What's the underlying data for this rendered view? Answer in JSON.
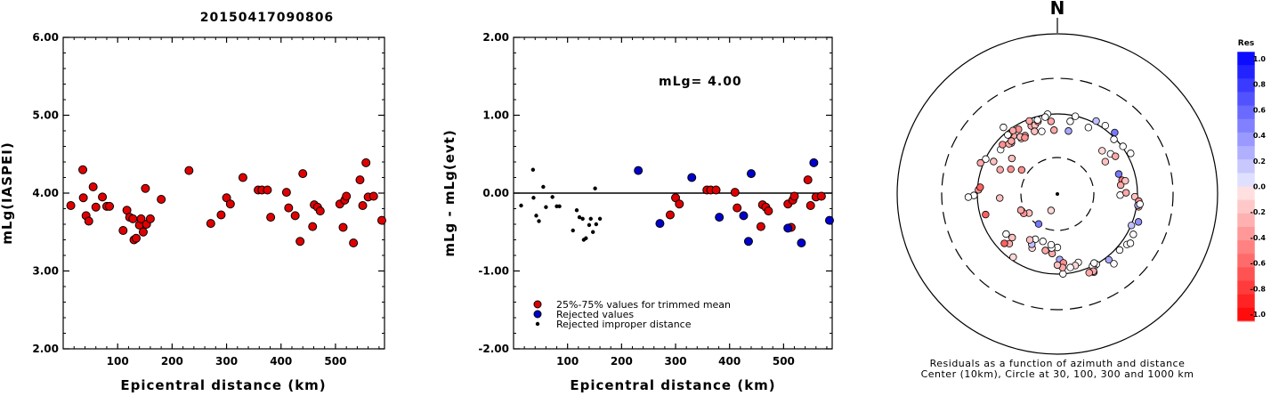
{
  "title": "20150417090806",
  "chart_data": [
    {
      "type": "scatter",
      "xlabel": "Epicentral distance (km)",
      "ylabel": "mLg(IASPEI)",
      "xlim": [
        0,
        590
      ],
      "ylim": [
        2.0,
        6.0
      ],
      "xticks": [
        "100",
        "200",
        "300",
        "400",
        "500"
      ],
      "yticks": [
        "2.00",
        "3.00",
        "4.00",
        "5.00",
        "6.00"
      ],
      "series": [
        {
          "points": [
            [
              14,
              3.84
            ],
            [
              36,
              4.3
            ],
            [
              37,
              3.94
            ],
            [
              42,
              3.71
            ],
            [
              47,
              3.64
            ],
            [
              55,
              4.08
            ],
            [
              60,
              3.82
            ],
            [
              72,
              3.95
            ],
            [
              80,
              3.83
            ],
            [
              85,
              3.83
            ],
            [
              110,
              3.52
            ],
            [
              117,
              3.78
            ],
            [
              122,
              3.69
            ],
            [
              128,
              3.67
            ],
            [
              130,
              3.4
            ],
            [
              134,
              3.42
            ],
            [
              140,
              3.59
            ],
            [
              143,
              3.67
            ],
            [
              147,
              3.5
            ],
            [
              151,
              4.06
            ],
            [
              153,
              3.6
            ],
            [
              160,
              3.67
            ],
            [
              180,
              3.92
            ],
            [
              231,
              4.29
            ],
            [
              271,
              3.61
            ],
            [
              290,
              3.72
            ],
            [
              300,
              3.94
            ],
            [
              307,
              3.86
            ],
            [
              330,
              4.2
            ],
            [
              358,
              4.04
            ],
            [
              365,
              4.04
            ],
            [
              375,
              4.04
            ],
            [
              381,
              3.69
            ],
            [
              410,
              4.01
            ],
            [
              414,
              3.81
            ],
            [
              426,
              3.71
            ],
            [
              435,
              3.38
            ],
            [
              440,
              4.25
            ],
            [
              458,
              3.57
            ],
            [
              461,
              3.85
            ],
            [
              467,
              3.82
            ],
            [
              472,
              3.77
            ],
            [
              508,
              3.86
            ],
            [
              514,
              3.56
            ],
            [
              517,
              3.91
            ],
            [
              520,
              3.96
            ],
            [
              533,
              3.36
            ],
            [
              545,
              4.17
            ],
            [
              550,
              3.84
            ],
            [
              556,
              4.39
            ],
            [
              560,
              3.95
            ],
            [
              570,
              3.96
            ],
            [
              585,
              3.65
            ]
          ]
        }
      ]
    },
    {
      "type": "scatter",
      "xlabel": "Epicentral distance (km)",
      "ylabel": "mLg - mLg(evt)",
      "xlim": [
        0,
        590
      ],
      "ylim": [
        -2.0,
        2.0
      ],
      "xticks": [
        "100",
        "200",
        "300",
        "400",
        "500"
      ],
      "yticks": [
        "-2.00",
        "-1.00",
        "0.00",
        "1.00",
        "2.00"
      ],
      "annotation": "mLg= 4.00",
      "legend_position": "bottom-left",
      "series": [
        {
          "name": "25%-75% values for trimmed mean",
          "color": "#e00000",
          "points": [
            [
              290,
              -0.28
            ],
            [
              300,
              -0.06
            ],
            [
              307,
              -0.14
            ],
            [
              358,
              0.04
            ],
            [
              365,
              0.04
            ],
            [
              375,
              0.04
            ],
            [
              410,
              0.01
            ],
            [
              414,
              -0.19
            ],
            [
              458,
              -0.43
            ],
            [
              461,
              -0.15
            ],
            [
              467,
              -0.18
            ],
            [
              472,
              -0.23
            ],
            [
              508,
              -0.14
            ],
            [
              514,
              -0.44
            ],
            [
              517,
              -0.09
            ],
            [
              520,
              -0.04
            ],
            [
              545,
              0.17
            ],
            [
              550,
              -0.16
            ],
            [
              560,
              -0.05
            ],
            [
              570,
              -0.04
            ]
          ]
        },
        {
          "name": "Rejected values",
          "color": "#0000cc",
          "points": [
            [
              231,
              0.29
            ],
            [
              271,
              -0.39
            ],
            [
              330,
              0.2
            ],
            [
              381,
              -0.31
            ],
            [
              426,
              -0.29
            ],
            [
              435,
              -0.62
            ],
            [
              440,
              0.25
            ],
            [
              508,
              -0.45
            ],
            [
              533,
              -0.64
            ],
            [
              556,
              0.39
            ],
            [
              585,
              -0.35
            ]
          ]
        },
        {
          "name": "Rejected improper distance",
          "color": "#000000",
          "points": [
            [
              14,
              -0.16
            ],
            [
              36,
              0.3
            ],
            [
              37,
              -0.06
            ],
            [
              42,
              -0.29
            ],
            [
              47,
              -0.36
            ],
            [
              55,
              0.08
            ],
            [
              60,
              -0.18
            ],
            [
              72,
              -0.05
            ],
            [
              80,
              -0.17
            ],
            [
              85,
              -0.17
            ],
            [
              110,
              -0.48
            ],
            [
              117,
              -0.22
            ],
            [
              122,
              -0.31
            ],
            [
              128,
              -0.33
            ],
            [
              130,
              -0.6
            ],
            [
              134,
              -0.58
            ],
            [
              140,
              -0.41
            ],
            [
              143,
              -0.33
            ],
            [
              147,
              -0.5
            ],
            [
              151,
              0.06
            ],
            [
              153,
              -0.4
            ],
            [
              160,
              -0.33
            ]
          ]
        }
      ]
    },
    {
      "type": "scatter",
      "title": "N",
      "caption_line1": "Residuals as a function of azimuth and distance",
      "caption_line2": "Center (10km), Circle at 30, 100, 300 and 1000 km",
      "colorbar_title": "Res",
      "colorbar_ticks": [
        "1.0",
        "0.8",
        "0.6",
        "0.4",
        "0.2",
        "0.0",
        "-0.2",
        "-0.4",
        "-0.6",
        "-0.8",
        "-1.0"
      ],
      "colorbar_range": [
        -1.0,
        1.0
      ],
      "series": [
        {
          "name": "residuals",
          "points": [
            [
              10,
              64,
              0.3
            ],
            [
              -14,
              65,
              0.0
            ],
            [
              -3,
              64,
              -0.3
            ],
            [
              -33,
              68,
              -0.2
            ],
            [
              -29,
              69,
              -0.3
            ],
            [
              -21,
              82,
              -0.3
            ],
            [
              -18,
              81,
              -0.2
            ],
            [
              -15,
              87,
              -0.4
            ],
            [
              10,
              84,
              0.0
            ],
            [
              25,
              83,
              0.0
            ],
            [
              -37,
              82,
              -0.3
            ],
            [
              -31,
              88,
              -0.4
            ],
            [
              -39,
              92,
              -0.4
            ],
            [
              -52,
              80,
              0.0
            ],
            [
              -63,
              79,
              -0.2
            ],
            [
              -64,
              99,
              0.0
            ],
            [
              -68,
              109,
              -0.3
            ],
            [
              -87,
              97,
              -0.4
            ],
            [
              -85,
              93,
              -0.6
            ],
            [
              -42,
              73,
              -0.3
            ],
            [
              -20,
              69,
              -0.2
            ],
            [
              46,
              61,
              -0.1
            ],
            [
              56,
              54,
              -0.2
            ],
            [
              53,
              69,
              0.0
            ],
            [
              72,
              65,
              0.5
            ],
            [
              57,
              74,
              -0.3
            ],
            [
              78,
              68,
              -0.5
            ],
            [
              82,
              64,
              -0.3
            ],
            [
              79,
              74,
              -0.2
            ],
            [
              91,
              62,
              0.0
            ],
            [
              89,
              73,
              -0.3
            ],
            [
              92,
              93,
              -0.2
            ],
            [
              99,
              107,
              -0.3
            ],
            [
              95,
              105,
              -0.4
            ],
            [
              98,
              104,
              0.3
            ],
            [
              97,
              110,
              0.0
            ],
            [
              109,
              119,
              0.4
            ],
            [
              113,
              101,
              0.2
            ],
            [
              118,
              120,
              0.0
            ],
            [
              132,
              112,
              0.0
            ],
            [
              126,
              120,
              0.0
            ],
            [
              142,
              111,
              0.3
            ],
            [
              124,
              128,
              0.0
            ],
            [
              141,
              135,
              0.0
            ],
            [
              151,
              101,
              0.0
            ],
            [
              154,
              107,
              0.0
            ],
            [
              154,
              100,
              0.0
            ],
            [
              152,
              95,
              0.0
            ],
            [
              155,
              121,
              -0.2
            ],
            [
              155,
              117,
              -0.3
            ],
            [
              158,
              116,
              -0.3
            ],
            [
              176,
              100,
              0.0
            ],
            [
              178,
              67,
              0.3
            ],
            [
              163,
              79,
              0.0
            ],
            [
              166,
              84,
              -0.1
            ],
            [
              170,
              86,
              0.0
            ],
            [
              175,
              74,
              -0.4
            ],
            [
              176,
              84,
              -0.3
            ],
            [
              180,
              78,
              -0.2
            ],
            [
              180,
              48,
              0.0
            ],
            [
              185,
              57,
              -0.3
            ],
            [
              186,
              49,
              0.0
            ],
            [
              187,
              45,
              0.0
            ],
            [
              192,
              54,
              -0.3
            ],
            [
              197,
              43,
              0.0
            ],
            [
              201,
              17,
              -0.1
            ],
            [
              205,
              57,
              -0.1
            ],
            [
              206,
              44,
              0.0
            ],
            [
              207,
              52,
              0.2
            ],
            [
              211,
              48,
              -0.2
            ],
            [
              215,
              92,
              -0.1
            ],
            [
              212,
              29,
              0.5
            ],
            [
              236,
              28,
              -0.2
            ],
            [
              240,
              32,
              -0.4
            ],
            [
              246,
              33,
              -0.3
            ],
            [
              232,
              66,
              0.0
            ],
            [
              226,
              62,
              -0.2
            ],
            [
              224,
              74,
              -0.3
            ],
            [
              227,
              81,
              -0.6
            ],
            [
              254,
              86,
              -0.6
            ],
            [
              266,
              54,
              -0.2
            ],
            [
              269,
              111,
              0.0
            ],
            [
              268,
              132,
              0.0
            ],
            [
              293,
              61,
              -0.3
            ],
            [
              298,
              47,
              -0.4
            ],
            [
              304,
              36,
              -0.4
            ],
            [
              308,
              54,
              -0.2
            ],
            [
              312,
              84,
              -0.4
            ],
            [
              316,
              75,
              -0.3
            ],
            [
              319,
              76,
              -0.3
            ],
            [
              320,
              92,
              0.0
            ],
            [
              325,
              93,
              -0.3
            ],
            [
              321,
              119,
              0.0
            ],
            [
              327,
              72,
              -0.2
            ],
            [
              330,
              66,
              -0.4
            ],
            [
              339,
              95,
              -0.3
            ],
            [
              355,
              82,
              -0.3
            ],
            [
              345,
              91,
              0.0
            ],
            [
              353,
              101,
              0.0
            ],
            [
              351,
              94,
              0.0
            ],
            [
              13,
              99,
              0.0
            ],
            [
              28,
              108,
              0.2
            ],
            [
              35,
              111,
              0.0
            ],
            [
              46,
              96,
              0.0
            ],
            [
              43,
              113,
              0.5
            ],
            [
              54,
              103,
              0.0
            ],
            [
              61,
              112,
              0.0
            ]
          ]
        }
      ]
    }
  ]
}
